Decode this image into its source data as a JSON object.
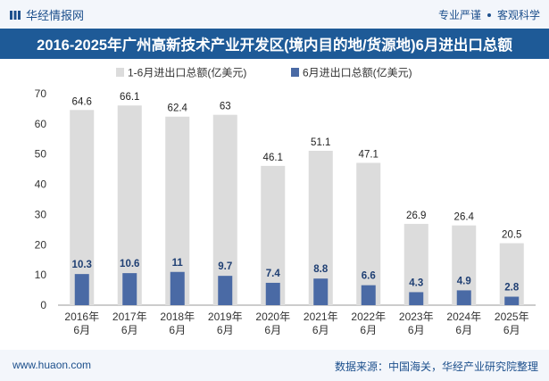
{
  "header": {
    "brand": "华经情报网",
    "tagline_left": "专业严谨",
    "tagline_right": "客观科学"
  },
  "chart_data": {
    "type": "bar",
    "title": "2016-2025年广州高新技术产业开发区(境内目的地/货源地)6月进出口总额",
    "categories": [
      [
        "2016年",
        "6月"
      ],
      [
        "2017年",
        "6月"
      ],
      [
        "2018年",
        "6月"
      ],
      [
        "2019年",
        "6月"
      ],
      [
        "2020年",
        "6月"
      ],
      [
        "2021年",
        "6月"
      ],
      [
        "2022年",
        "6月"
      ],
      [
        "2023年",
        "6月"
      ],
      [
        "2024年",
        "6月"
      ],
      [
        "2025年",
        "6月"
      ]
    ],
    "series": [
      {
        "name": "1-6月进出口总额(亿美元)",
        "color": "#dcdcdc",
        "values": [
          64.6,
          66.1,
          62.4,
          63,
          46.1,
          51.1,
          47.1,
          26.9,
          26.4,
          20.5
        ]
      },
      {
        "name": "6月进出口总额(亿美元)",
        "color": "#4a6aa5",
        "values": [
          10.3,
          10.6,
          11,
          9.7,
          7.4,
          8.8,
          6.6,
          4.3,
          4.9,
          2.8
        ]
      }
    ],
    "ylim": [
      0,
      70
    ],
    "yticks": [
      0,
      10,
      20,
      30,
      40,
      50,
      60,
      70
    ],
    "legend_position": "top-center",
    "grid": false
  },
  "footer": {
    "url": "www.huaon.com",
    "source": "数据来源：中国海关，华经产业研究院整理"
  }
}
